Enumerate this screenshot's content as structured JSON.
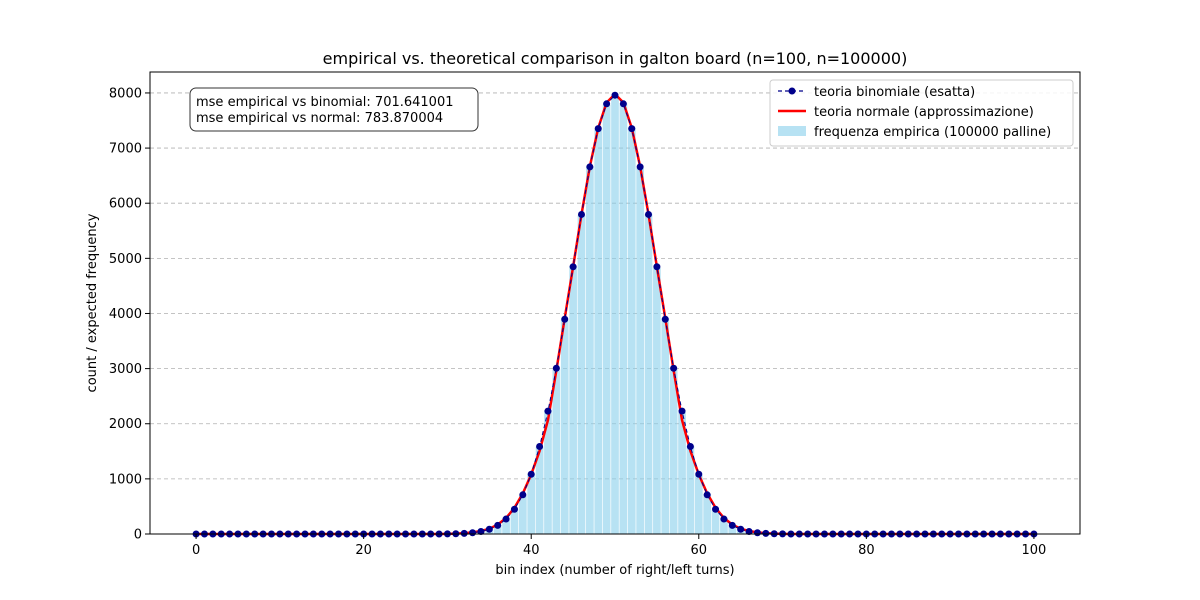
{
  "chart_data": {
    "type": "bar",
    "title": "empirical vs. theoretical comparison in galton board (n=100, n=100000)",
    "xlabel": "bin index (number of right/left turns)",
    "ylabel": "count / expected frequency",
    "xlim": [
      -5.5,
      105.5
    ],
    "ylim": [
      0,
      8380
    ],
    "x_ticks": [
      0,
      20,
      40,
      60,
      80,
      100
    ],
    "y_ticks": [
      0,
      1000,
      2000,
      3000,
      4000,
      5000,
      6000,
      7000,
      8000
    ],
    "grid": "horizontal dashed",
    "legend_position": "top-right",
    "annotation": [
      "mse empirical vs binomial: 701.641001",
      "mse empirical vs normal: 783.870004"
    ],
    "colors": {
      "bars": "#87ceeb",
      "binomial": "#00008b",
      "normal": "#ff0000"
    },
    "series": [
      {
        "name": "teoria binomiale (esatta)",
        "kind": "line-markers",
        "style": "dashed",
        "x": [
          0,
          1,
          2,
          3,
          4,
          5,
          6,
          7,
          8,
          9,
          10,
          11,
          12,
          13,
          14,
          15,
          16,
          17,
          18,
          19,
          20,
          21,
          22,
          23,
          24,
          25,
          26,
          27,
          28,
          29,
          30,
          31,
          32,
          33,
          34,
          35,
          36,
          37,
          38,
          39,
          40,
          41,
          42,
          43,
          44,
          45,
          46,
          47,
          48,
          49,
          50,
          51,
          52,
          53,
          54,
          55,
          56,
          57,
          58,
          59,
          60,
          61,
          62,
          63,
          64,
          65,
          66,
          67,
          68,
          69,
          70,
          71,
          72,
          73,
          74,
          75,
          76,
          77,
          78,
          79,
          80,
          81,
          82,
          83,
          84,
          85,
          86,
          87,
          88,
          89,
          90,
          91,
          92,
          93,
          94,
          95,
          96,
          97,
          98,
          99,
          100
        ],
        "values": [
          0,
          0,
          0,
          0,
          0,
          0,
          0,
          0,
          0,
          0,
          0,
          0,
          0,
          0,
          0,
          0,
          0,
          0,
          0,
          0,
          0,
          0,
          0,
          0,
          0,
          0,
          0,
          0,
          0,
          0,
          2,
          5,
          11,
          23,
          46,
          86,
          156,
          271,
          449,
          711,
          1084,
          1587,
          2229,
          3006,
          3895,
          4847,
          5796,
          6659,
          7353,
          7803,
          7959,
          7803,
          7353,
          6659,
          5796,
          4847,
          3895,
          3006,
          2229,
          1587,
          1084,
          711,
          449,
          271,
          156,
          86,
          46,
          23,
          11,
          5,
          2,
          0,
          0,
          0,
          0,
          0,
          0,
          0,
          0,
          0,
          0,
          0,
          0,
          0,
          0,
          0,
          0,
          0,
          0,
          0,
          0,
          0,
          0,
          0,
          0,
          0,
          0,
          0,
          0,
          0,
          0
        ]
      },
      {
        "name": "teoria normale (approssimazione)",
        "kind": "line",
        "style": "solid",
        "x": [
          0,
          1,
          2,
          3,
          4,
          5,
          6,
          7,
          8,
          9,
          10,
          11,
          12,
          13,
          14,
          15,
          16,
          17,
          18,
          19,
          20,
          21,
          22,
          23,
          24,
          25,
          26,
          27,
          28,
          29,
          30,
          31,
          32,
          33,
          34,
          35,
          36,
          37,
          38,
          39,
          40,
          41,
          42,
          43,
          44,
          45,
          46,
          47,
          48,
          49,
          50,
          51,
          52,
          53,
          54,
          55,
          56,
          57,
          58,
          59,
          60,
          61,
          62,
          63,
          64,
          65,
          66,
          67,
          68,
          69,
          70,
          71,
          72,
          73,
          74,
          75,
          76,
          77,
          78,
          79,
          80,
          81,
          82,
          83,
          84,
          85,
          86,
          87,
          88,
          89,
          90,
          91,
          92,
          93,
          94,
          95,
          96,
          97,
          98,
          99,
          100
        ],
        "values": [
          0,
          0,
          0,
          0,
          0,
          0,
          0,
          0,
          0,
          0,
          0,
          0,
          0,
          0,
          0,
          0,
          0,
          0,
          0,
          0,
          0,
          0,
          0,
          0,
          0,
          0,
          0,
          0,
          0,
          0,
          3,
          7,
          15,
          29,
          54,
          96,
          170,
          290,
          475,
          737,
          1080,
          1506,
          2066,
          2966,
          3916,
          4846,
          5796,
          6666,
          7366,
          7826,
          7979,
          7826,
          7366,
          6666,
          5796,
          4846,
          3916,
          2966,
          2066,
          1506,
          1080,
          737,
          475,
          290,
          170,
          96,
          54,
          29,
          15,
          7,
          3,
          0,
          0,
          0,
          0,
          0,
          0,
          0,
          0,
          0,
          0,
          0,
          0,
          0,
          0,
          0,
          0,
          0,
          0,
          0,
          0,
          0,
          0,
          0,
          0,
          0,
          0,
          0,
          0,
          0,
          0
        ]
      },
      {
        "name": "frequenza empirica (100000 palline)",
        "kind": "bar",
        "x": [
          0,
          1,
          2,
          3,
          4,
          5,
          6,
          7,
          8,
          9,
          10,
          11,
          12,
          13,
          14,
          15,
          16,
          17,
          18,
          19,
          20,
          21,
          22,
          23,
          24,
          25,
          26,
          27,
          28,
          29,
          30,
          31,
          32,
          33,
          34,
          35,
          36,
          37,
          38,
          39,
          40,
          41,
          42,
          43,
          44,
          45,
          46,
          47,
          48,
          49,
          50,
          51,
          52,
          53,
          54,
          55,
          56,
          57,
          58,
          59,
          60,
          61,
          62,
          63,
          64,
          65,
          66,
          67,
          68,
          69,
          70,
          71,
          72,
          73,
          74,
          75,
          76,
          77,
          78,
          79,
          80,
          81,
          82,
          83,
          84,
          85,
          86,
          87,
          88,
          89,
          90,
          91,
          92,
          93,
          94,
          95,
          96,
          97,
          98,
          99,
          100
        ],
        "values": [
          0,
          0,
          0,
          0,
          0,
          0,
          0,
          0,
          0,
          0,
          0,
          0,
          0,
          0,
          0,
          0,
          0,
          0,
          0,
          0,
          0,
          0,
          0,
          0,
          0,
          0,
          0,
          0,
          0,
          0,
          2,
          6,
          12,
          21,
          48,
          82,
          160,
          265,
          455,
          700,
          1090,
          1580,
          2240,
          2990,
          3880,
          4860,
          5780,
          6670,
          7340,
          7790,
          7930,
          7810,
          7370,
          6640,
          5810,
          4830,
          3910,
          3020,
          2210,
          1600,
          1070,
          720,
          440,
          280,
          150,
          90,
          44,
          24,
          10,
          4,
          2,
          0,
          0,
          0,
          0,
          0,
          0,
          0,
          0,
          0,
          0,
          0,
          0,
          0,
          0,
          0,
          0,
          0,
          0,
          0,
          0,
          0,
          0,
          0,
          0,
          0,
          0,
          0,
          0,
          0,
          0
        ]
      }
    ]
  }
}
